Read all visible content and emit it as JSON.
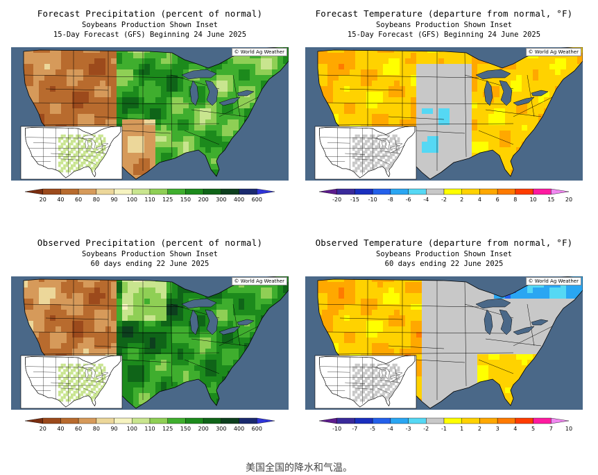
{
  "colors": {
    "ocean": "#4a6888",
    "precip_scale": [
      "#7a2e10",
      "#9c4a1c",
      "#b86b2e",
      "#d69a5a",
      "#ecd79a",
      "#f6f3c0",
      "#c9e58f",
      "#8fcf55",
      "#3fae2e",
      "#1c8a1c",
      "#0f6418",
      "#0d3f1e",
      "#1a2a6e",
      "#2f35d8"
    ],
    "temp_scale": [
      "#5e1c8e",
      "#3a2a9a",
      "#1a2fbe",
      "#2460ea",
      "#2aa6f2",
      "#55d8f4",
      "#c8c8c8",
      "#ffff00",
      "#ffd200",
      "#ffa800",
      "#ff7a00",
      "#ff3c00",
      "#ff1aa0",
      "#f088f0"
    ]
  },
  "panels": [
    {
      "id": "fcst-precip",
      "title": "Forecast Precipitation (percent of normal)",
      "subtitle": "Soybeans Production Shown Inset",
      "period": "15-Day Forecast (GFS) Beginning 24 June 2025",
      "credit": "© World Ag Weather",
      "scale": "precip",
      "legend_ticks": [
        "20",
        "40",
        "60",
        "80",
        "90",
        "100",
        "110",
        "125",
        "150",
        "200",
        "300",
        "400",
        "600"
      ]
    },
    {
      "id": "fcst-temp",
      "title": "Forecast Temperature (departure from normal, °F)",
      "subtitle": "Soybeans Production Shown Inset",
      "period": "15-Day Forecast (GFS) Beginning 24 June 2025",
      "credit": "© World Ag Weather",
      "scale": "temp",
      "legend_ticks": [
        "-20",
        "-15",
        "-10",
        "-8",
        "-6",
        "-4",
        "-2",
        "2",
        "4",
        "6",
        "8",
        "10",
        "15",
        "20"
      ]
    },
    {
      "id": "obs-precip",
      "title": "Observed Precipitation (percent of normal)",
      "subtitle": "Soybeans Production Shown Inset",
      "period": "60 days ending 22 June 2025",
      "credit": "© World Ag Weather",
      "scale": "precip",
      "legend_ticks": [
        "20",
        "40",
        "60",
        "80",
        "90",
        "100",
        "110",
        "125",
        "150",
        "200",
        "300",
        "400",
        "600"
      ]
    },
    {
      "id": "obs-temp",
      "title": "Observed Temperature (departure from normal, °F)",
      "subtitle": "Soybeans Production Shown Inset",
      "period": "60 days ending 22 June 2025",
      "credit": "© World Ag Weather",
      "scale": "temp",
      "legend_ticks": [
        "-10",
        "-7",
        "-5",
        "-4",
        "-3",
        "-2",
        "-1",
        "1",
        "2",
        "3",
        "4",
        "5",
        "7",
        "10"
      ]
    }
  ],
  "caption": "美国全国的降水和气温。"
}
